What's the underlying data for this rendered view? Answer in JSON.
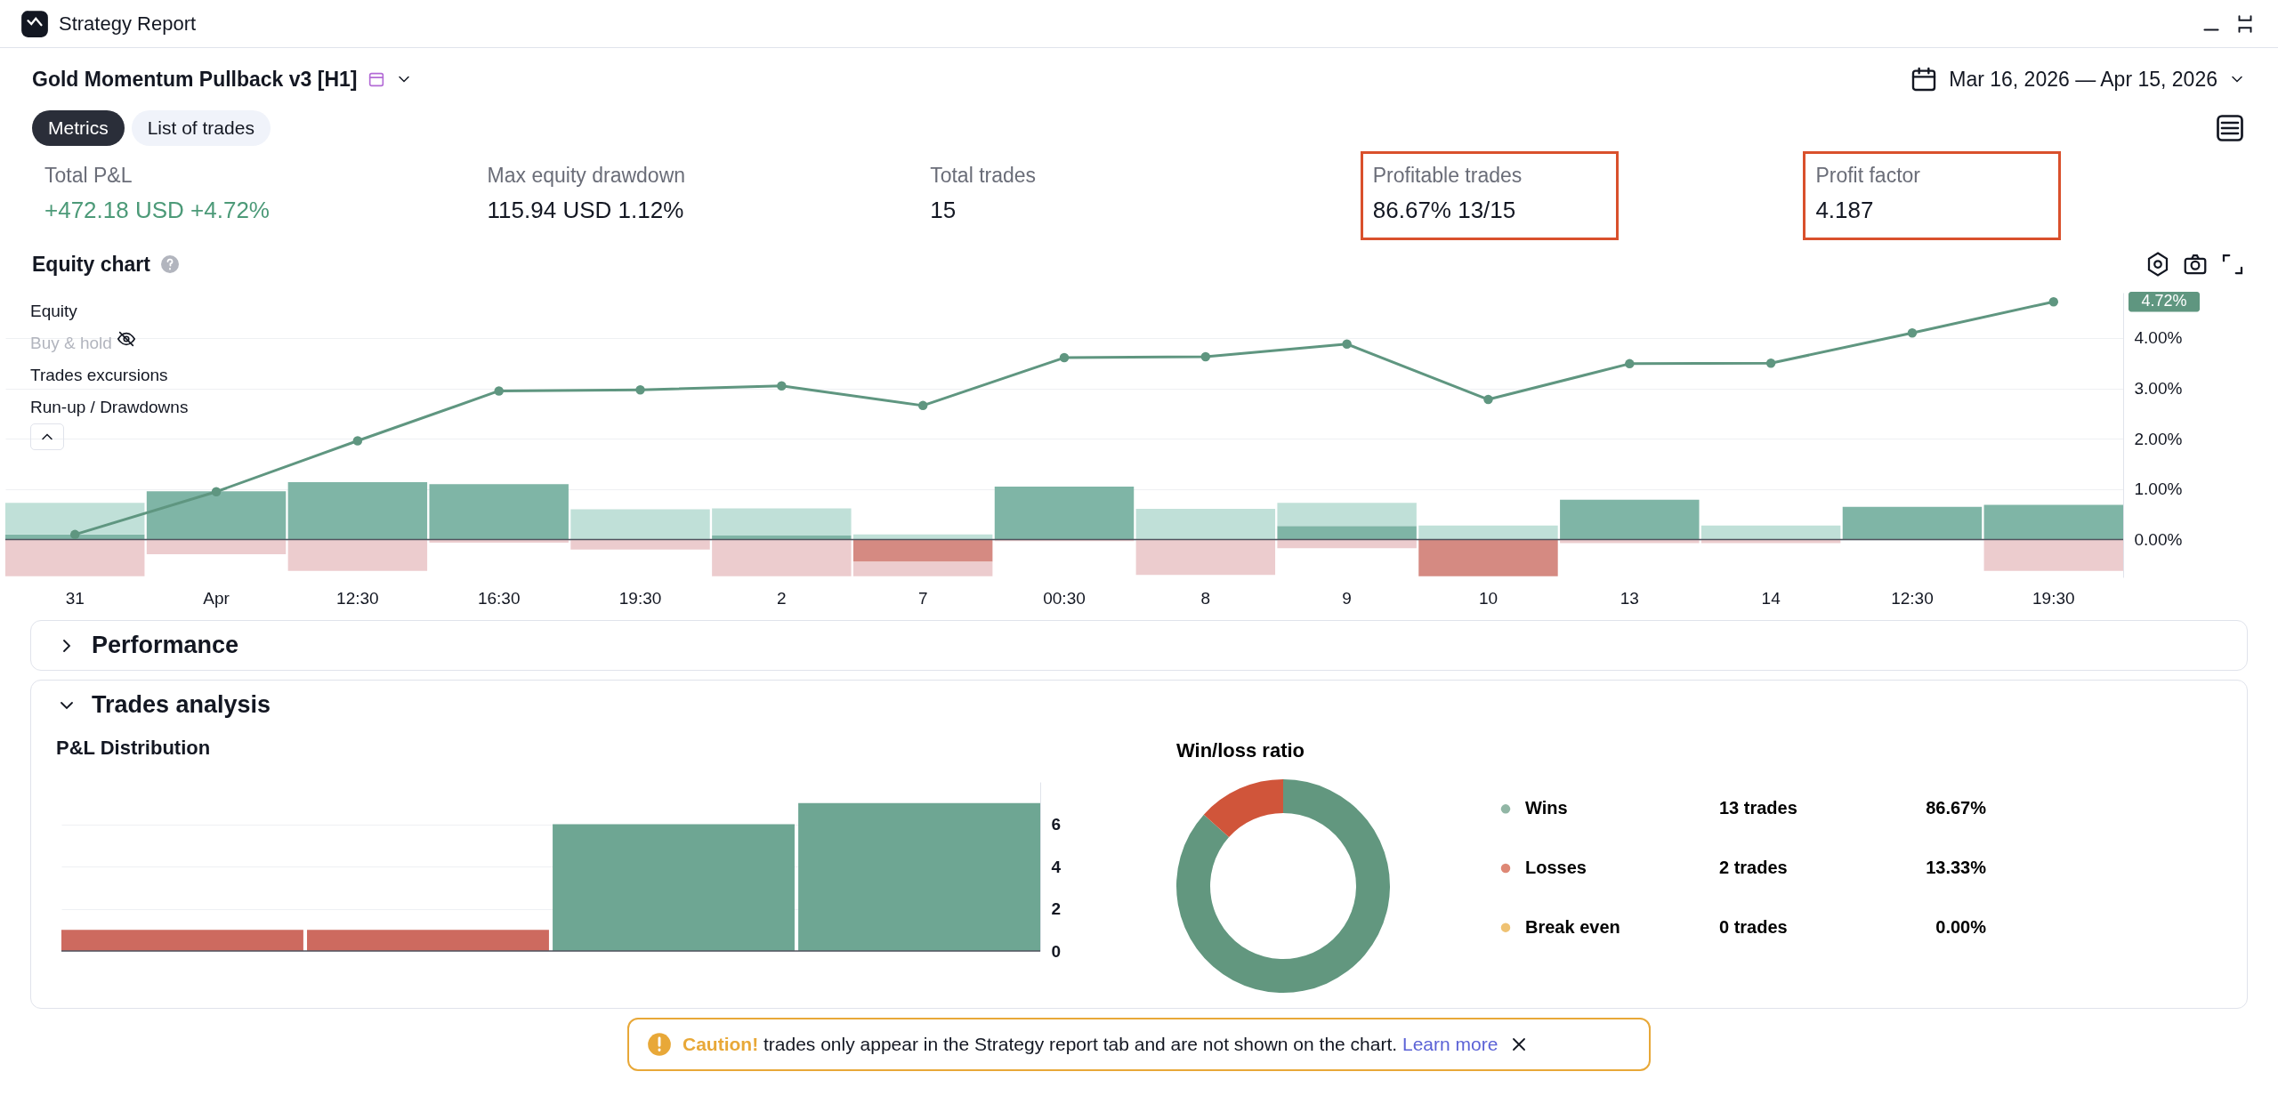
{
  "chart_data": [
    {
      "type": "other",
      "title": "Gold Momentum Pullback v3 [H1]",
      "subtitle": "Mar 16, 2026 — Apr 15, 2026",
      "annotations": [
        "Strategy Report",
        "Metrics",
        "List of trades",
        "Total P&L",
        "+472.18 USD +4.72%",
        "Max equity drawdown",
        "115.94 USD 1.12%",
        "Total trades",
        "15",
        "Profitable trades",
        "86.67% 13/15",
        "Profit factor",
        "4.187",
        "Performance",
        "Trades analysis",
        "Caution!",
        "trades only appear in the Strategy report tab and are not shown on the chart.",
        "Learn more"
      ]
    },
    {
      "type": "bar",
      "title": "Equity chart",
      "categories": [
        "31",
        "Apr",
        "12:30",
        "16:30",
        "19:30",
        "2",
        "7",
        "00:30",
        "8",
        "9",
        "10",
        "13",
        "14",
        "12:30",
        "19:30"
      ],
      "series": [
        {
          "type": "line",
          "color": "#5f9680",
          "values": [
            0.1,
            0.95,
            1.96,
            2.95,
            2.97,
            3.05,
            2.66,
            3.61,
            3.63,
            3.88,
            2.78,
            3.49,
            3.5,
            4.1,
            4.72
          ]
        },
        {
          "colors": [
            "#7fb5a6",
            "#7fb5a6",
            "#7fb5a6",
            "#7fb5a6",
            "#7fb5a6",
            "#7fb5a6",
            "#d58a82",
            "#7fb5a6",
            "#7fb5a6",
            "#7fb5a6",
            "#d58a82",
            "#7fb5a6",
            "#7fb5a6",
            "#7fb5a6",
            "#7fb5a6"
          ],
          "values": [
            0.1,
            0.96,
            1.14,
            1.1,
            null,
            0.08,
            -0.44,
            1.05,
            null,
            0.27,
            -0.73,
            0.79,
            null,
            0.65,
            0.69
          ]
        },
        {
          "color": "#c0e0d8",
          "values": [
            0.63,
            null,
            null,
            null,
            0.6,
            0.54,
            0.1,
            null,
            0.61,
            0.46,
            0.28,
            null,
            0.28,
            null,
            null
          ]
        },
        {
          "color": "#ecccce",
          "values": [
            -0.73,
            -0.29,
            -0.62,
            -0.06,
            -0.2,
            -0.73,
            -0.29,
            -0.03,
            -0.7,
            -0.17,
            null,
            -0.07,
            -0.07,
            null,
            -0.62
          ]
        }
      ],
      "stacked": true,
      "ylim": [
        -0.75,
        4.9
      ],
      "yticks": [
        {
          "value": 0,
          "label": "0.00%"
        },
        {
          "value": 1,
          "label": "1.00%"
        },
        {
          "value": 2,
          "label": "2.00%"
        },
        {
          "value": 3,
          "label": "3.00%"
        },
        {
          "value": 4,
          "label": "4.00%"
        }
      ],
      "grid": "y",
      "marker": "circle",
      "annotations": [
        "Equity",
        "Buy & hold",
        "Trades excursions",
        "Run-up / Drawdowns",
        "4.72%"
      ]
    },
    {
      "type": "bar",
      "title": "P&L Distribution",
      "categories": [
        null,
        null,
        null,
        null
      ],
      "values": [
        1,
        1,
        6,
        7
      ],
      "colors": [
        "#cd6a5f",
        "#cd6a5f",
        "#6ea693",
        "#6ea693"
      ],
      "ylim": [
        0,
        8
      ],
      "yticks": [
        0,
        2,
        4,
        6
      ],
      "grid": "y"
    },
    {
      "type": "donut",
      "title": "Win/loss ratio",
      "categories": [
        "Wins",
        "Losses",
        "Break even"
      ],
      "values": [
        86.67,
        13.33,
        0
      ],
      "colors": [
        "#62977f",
        "#d0553a",
        "#e8a838"
      ],
      "value_labels": [
        "86.67%",
        "13.33%",
        "0.00%"
      ],
      "annotations": [
        "13 trades",
        "2 trades",
        "0 trades"
      ],
      "legend": "right"
    }
  ]
}
